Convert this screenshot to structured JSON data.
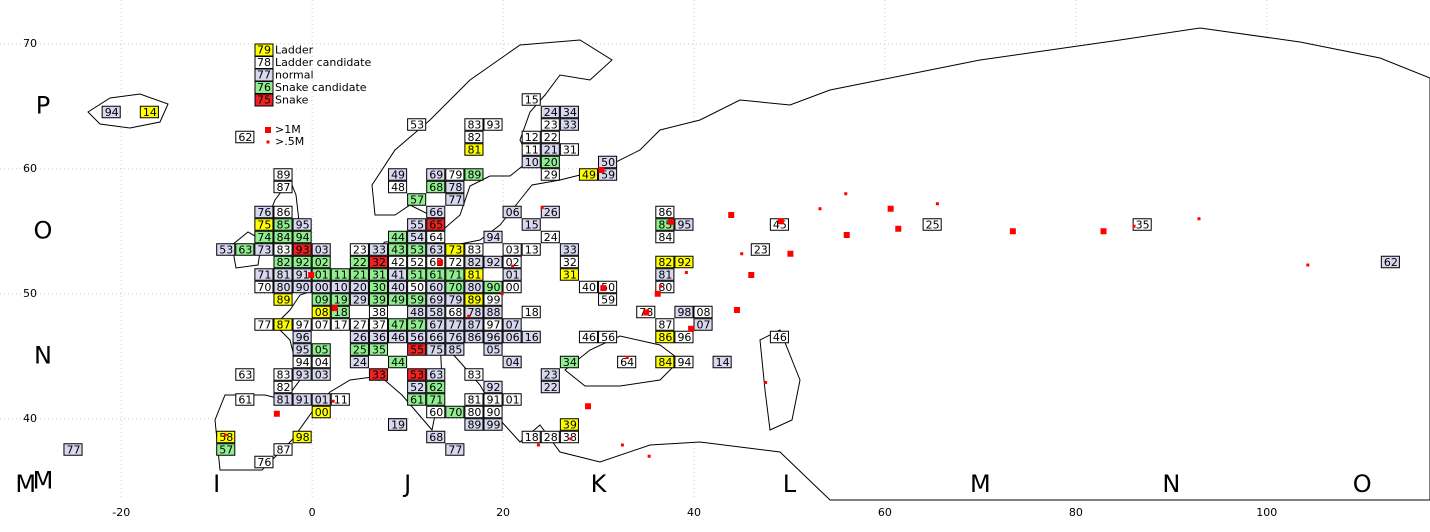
{
  "chart_data": {
    "type": "scatter",
    "xlim": [
      -32.7,
      117.1
    ],
    "ylim": [
      33.5,
      73.5
    ],
    "xticks": [
      -20,
      0,
      20,
      40,
      60,
      80,
      100
    ],
    "yticks": [
      40,
      50,
      60,
      70
    ],
    "grid": true,
    "field_rows": [
      {
        "value": 65,
        "label": "P"
      },
      {
        "value": 55,
        "label": "O"
      },
      {
        "value": 45,
        "label": "N"
      },
      {
        "value": 35,
        "label": "M"
      }
    ],
    "field_cols": [
      {
        "value": -30,
        "label": "M"
      },
      {
        "value": -10,
        "label": "I"
      },
      {
        "value": 10,
        "label": "J"
      },
      {
        "value": 30,
        "label": "K"
      },
      {
        "value": 50,
        "label": "L"
      },
      {
        "value": 70,
        "label": "M"
      },
      {
        "value": 90,
        "label": "N"
      },
      {
        "value": 110,
        "label": "O"
      }
    ],
    "series": [
      {
        "name": "Ladder",
        "sample": "79",
        "color": "#ffff00",
        "x": [
          -17,
          17,
          29,
          -5,
          15,
          37,
          39,
          17,
          27,
          -3,
          17,
          1,
          -3,
          37,
          37,
          1,
          -1,
          -9,
          27
        ],
        "y": [
          64.5,
          61.5,
          59.5,
          55.5,
          53.5,
          52.5,
          52.5,
          51.5,
          51.5,
          49.5,
          49.5,
          48.5,
          47.5,
          46.5,
          44.5,
          40.5,
          38.5,
          38.5,
          39.5
        ],
        "labels": [
          "14",
          "81",
          "49",
          "75",
          "73",
          "82",
          "92",
          "81",
          "31",
          "89",
          "89",
          "08",
          "87",
          "86",
          "84",
          "00",
          "98",
          "58",
          "39"
        ]
      },
      {
        "name": "Ladder candidate",
        "sample": "78",
        "color": "#ffffff",
        "x": [
          23,
          25,
          -7,
          11,
          17,
          19,
          23,
          25,
          17,
          23,
          27,
          15,
          25,
          -3,
          9,
          -3,
          -3,
          37,
          49,
          13,
          25,
          37,
          -3,
          5,
          17,
          21,
          23,
          47,
          65,
          87,
          9,
          11,
          13,
          15,
          21,
          27,
          -5,
          11,
          21,
          29,
          31,
          37,
          19,
          31,
          7,
          15,
          23,
          35,
          41,
          -5,
          -1,
          1,
          3,
          5,
          7,
          19,
          37,
          29,
          31,
          39,
          49,
          -1,
          1,
          -7,
          -3,
          17,
          -3,
          -7,
          3,
          17,
          19,
          21,
          13,
          17,
          19,
          9,
          23,
          25,
          27,
          -3,
          -5,
          33,
          39
        ],
        "y": [
          65.5,
          63.5,
          62.5,
          63.5,
          63.5,
          63.5,
          62.5,
          62.5,
          62.5,
          61.5,
          61.5,
          59.5,
          59.5,
          59.5,
          58.5,
          58.5,
          56.5,
          56.5,
          55.5,
          54.5,
          54.5,
          54.5,
          53.5,
          53.5,
          53.5,
          53.5,
          53.5,
          53.5,
          55.5,
          55.5,
          52.5,
          52.5,
          52.5,
          52.5,
          52.5,
          52.5,
          50.5,
          50.5,
          50.5,
          50.5,
          50.5,
          50.5,
          49.5,
          49.5,
          48.5,
          48.5,
          48.5,
          48.5,
          48.5,
          47.5,
          47.5,
          47.5,
          47.5,
          47.5,
          47.5,
          47.5,
          47.5,
          46.5,
          46.5,
          46.5,
          46.5,
          44.5,
          44.5,
          43.5,
          43.5,
          43.5,
          42.5,
          41.5,
          41.5,
          41.5,
          41.5,
          41.5,
          40.5,
          40.5,
          40.5,
          39.5,
          38.5,
          38.5,
          38.5,
          37.5,
          36.5,
          44.5,
          44.5
        ],
        "labels": [
          "15",
          "23",
          "62",
          "53",
          "83",
          "93",
          "12",
          "22",
          "82",
          "11",
          "31",
          "79",
          "29",
          "89",
          "48",
          "87",
          "86",
          "86",
          "45",
          "64",
          "24",
          "84",
          "83",
          "23",
          "83",
          "03",
          "13",
          "23",
          "25",
          "35",
          "42",
          "52",
          "62",
          "72",
          "02",
          "32",
          "70",
          "50",
          "00",
          "40",
          "50",
          "80",
          "99",
          "59",
          "38",
          "68",
          "18",
          "78",
          "08",
          "77",
          "97",
          "07",
          "17",
          "27",
          "37",
          "97",
          "87",
          "46",
          "56",
          "96",
          "46",
          "94",
          "04",
          "63",
          "83",
          "83",
          "82",
          "61",
          "11",
          "81",
          "91",
          "01",
          "60",
          "80",
          "90",
          "49",
          "18",
          "28",
          "38",
          "87",
          "76",
          "64",
          "94"
        ]
      },
      {
        "name": "normal",
        "sample": "77",
        "color": "#d8d8f0",
        "x": [
          -21,
          25,
          27,
          27,
          25,
          23,
          31,
          31,
          9,
          13,
          15,
          15,
          -5,
          21,
          25,
          13,
          -1,
          11,
          23,
          39,
          11,
          19,
          -9,
          -5,
          1,
          7,
          13,
          27,
          17,
          19,
          -5,
          -3,
          -1,
          9,
          21,
          37,
          -3,
          -1,
          1,
          3,
          5,
          9,
          13,
          17,
          5,
          13,
          15,
          11,
          13,
          17,
          19,
          39,
          13,
          15,
          17,
          21,
          41,
          -1,
          5,
          7,
          9,
          11,
          13,
          15,
          17,
          19,
          21,
          23,
          -1,
          13,
          15,
          19,
          5,
          21,
          -1,
          1,
          13,
          19,
          11,
          25,
          25,
          -3,
          -1,
          1,
          9,
          17,
          19,
          13,
          15,
          -25,
          43,
          113
        ],
        "y": [
          64.5,
          64.5,
          64.5,
          63.5,
          61.5,
          60.5,
          60.5,
          59.5,
          59.5,
          59.5,
          58.5,
          57.5,
          56.5,
          56.5,
          56.5,
          56.5,
          55.5,
          55.5,
          55.5,
          55.5,
          54.5,
          54.5,
          53.5,
          53.5,
          53.5,
          53.5,
          53.5,
          53.5,
          52.5,
          52.5,
          51.5,
          51.5,
          51.5,
          51.5,
          51.5,
          51.5,
          50.5,
          50.5,
          50.5,
          50.5,
          50.5,
          50.5,
          50.5,
          50.5,
          49.5,
          49.5,
          49.5,
          48.5,
          48.5,
          48.5,
          48.5,
          48.5,
          47.5,
          47.5,
          47.5,
          47.5,
          47.5,
          46.5,
          46.5,
          46.5,
          46.5,
          46.5,
          46.5,
          46.5,
          46.5,
          46.5,
          46.5,
          46.5,
          45.5,
          45.5,
          45.5,
          45.5,
          44.5,
          44.5,
          43.5,
          43.5,
          43.5,
          42.5,
          42.5,
          43.5,
          42.5,
          41.5,
          41.5,
          41.5,
          39.5,
          39.5,
          39.5,
          38.5,
          37.5,
          37.5,
          44.5,
          52.5
        ],
        "labels": [
          "94",
          "24",
          "34",
          "33",
          "21",
          "10",
          "50",
          "59",
          "49",
          "69",
          "78",
          "77",
          "76",
          "06",
          "26",
          "66",
          "95",
          "55",
          "15",
          "95",
          "54",
          "94",
          "53",
          "73",
          "03",
          "33",
          "63",
          "33",
          "82",
          "92",
          "71",
          "81",
          "91",
          "41",
          "01",
          "81",
          "80",
          "90",
          "00",
          "10",
          "20",
          "40",
          "60",
          "80",
          "29",
          "69",
          "79",
          "48",
          "58",
          "78",
          "88",
          "98",
          "67",
          "77",
          "87",
          "07",
          "07",
          "96",
          "26",
          "36",
          "46",
          "56",
          "66",
          "76",
          "86",
          "96",
          "06",
          "16",
          "95",
          "75",
          "85",
          "05",
          "24",
          "04",
          "93",
          "03",
          "63",
          "92",
          "52",
          "23",
          "22",
          "81",
          "91",
          "01",
          "19",
          "89",
          "99",
          "68",
          "77",
          "77",
          "14",
          "62"
        ]
      },
      {
        "name": "Snake candidate",
        "sample": "76",
        "color": "#90ee90",
        "x": [
          17,
          13,
          11,
          -3,
          -5,
          -3,
          -1,
          9,
          25,
          -7,
          9,
          11,
          -3,
          -1,
          1,
          5,
          1,
          3,
          5,
          7,
          11,
          13,
          15,
          7,
          15,
          19,
          1,
          3,
          7,
          9,
          11,
          3,
          9,
          11,
          1,
          5,
          7,
          9,
          13,
          11,
          13,
          15,
          27,
          37,
          -9
        ],
        "y": [
          59.5,
          58.5,
          57.5,
          55.5,
          54.5,
          54.5,
          54.5,
          54.5,
          60.5,
          53.5,
          53.5,
          53.5,
          52.5,
          52.5,
          52.5,
          52.5,
          51.5,
          51.5,
          51.5,
          51.5,
          51.5,
          51.5,
          51.5,
          50.5,
          50.5,
          50.5,
          49.5,
          49.5,
          49.5,
          49.5,
          49.5,
          48.5,
          47.5,
          47.5,
          45.5,
          45.5,
          45.5,
          44.5,
          42.5,
          41.5,
          41.5,
          40.5,
          44.5,
          55.5,
          37.5
        ],
        "labels": [
          "89",
          "68",
          "57",
          "85",
          "74",
          "84",
          "94",
          "44",
          "20",
          "63",
          "43",
          "53",
          "82",
          "92",
          "02",
          "22",
          "01",
          "11",
          "21",
          "31",
          "51",
          "61",
          "71",
          "30",
          "70",
          "90",
          "09",
          "19",
          "39",
          "49",
          "59",
          "18",
          "47",
          "57",
          "05",
          "25",
          "35",
          "44",
          "62",
          "61",
          "71",
          "70",
          "34",
          "85",
          "57"
        ]
      },
      {
        "name": "Snake",
        "sample": "75",
        "color": "#ee2222",
        "x": [
          13,
          -1,
          7,
          7,
          11,
          11
        ],
        "y": [
          55.5,
          53.5,
          52.5,
          43.5,
          45.5,
          43.5
        ],
        "labels": [
          "65",
          "93",
          "32",
          "33",
          "55",
          "53"
        ]
      }
    ],
    "cities": [
      {
        "name": ">1M",
        "color": "#ff0000",
        "x": [
          43.9,
          49.1,
          50.1,
          56.0,
          60.6,
          61.4,
          73.4,
          82.9,
          37.6,
          30.3,
          28.9,
          39.7,
          30.5,
          13.4,
          -0.1,
          2.35,
          -3.7,
          35.0,
          36.2,
          44.5,
          46.0
        ],
        "y": [
          56.3,
          55.8,
          53.2,
          54.7,
          56.8,
          55.2,
          55.0,
          55.0,
          55.75,
          59.9,
          41.0,
          47.2,
          50.45,
          52.5,
          51.5,
          48.85,
          40.4,
          48.5,
          50.0,
          48.7,
          51.5
        ]
      },
      {
        "name": ">.5M",
        "color": "#ff0000",
        "x": [
          -9.1,
          2.2,
          65.5,
          92.9,
          104.3,
          45.0,
          32.5,
          35.3,
          55.9,
          53.2,
          47.5,
          39.2,
          86.1,
          29.0,
          27.1,
          23.7,
          19.9,
          16.4,
          21.0,
          24.1,
          33.0,
          36.5
        ],
        "y": [
          38.7,
          41.4,
          57.2,
          56.0,
          52.3,
          53.2,
          37.9,
          37.0,
          58.0,
          56.8,
          42.9,
          51.7,
          55.4,
          41.0,
          38.4,
          37.9,
          50.0,
          48.2,
          52.2,
          56.9,
          44.9,
          50.6
        ]
      }
    ]
  }
}
